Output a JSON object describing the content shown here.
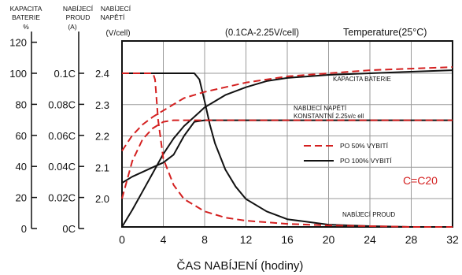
{
  "chart_data": {
    "type": "line",
    "title": "(0.1CA-2.25V/cell)",
    "subtitle": "Temperature(25°C)",
    "xlabel": "ČAS NABÍJENÍ (hodiny)",
    "x_ticks": [
      "0",
      "4",
      "8",
      "12",
      "16",
      "20",
      "24",
      "28",
      "32"
    ],
    "xlim": [
      0,
      32
    ],
    "axes": {
      "capacity": {
        "label_lines": [
          "KAPACITA",
          "BATERIE",
          "%"
        ],
        "ticks": [
          "0",
          "20",
          "40",
          "60",
          "80",
          "100",
          "120"
        ],
        "range": [
          0,
          120
        ]
      },
      "current": {
        "label_lines": [
          "NABÍJECÍ",
          "PROUD",
          "(A)"
        ],
        "ticks": [
          "0C",
          "0.02C",
          "0.04C",
          "0.06C",
          "0.08C",
          "0.1C"
        ],
        "range": [
          0,
          0.1
        ]
      },
      "voltage": {
        "label_lines": [
          "NABÍJECÍ",
          "NAPĚTÍ",
          "(V/cell)"
        ],
        "ticks": [
          "2.0",
          "2.1",
          "2.2",
          "2.3",
          "2.4"
        ],
        "range": [
          2.0,
          2.4
        ]
      }
    },
    "grid": true,
    "legend": {
      "placement": "right-middle",
      "items": [
        {
          "label": "PO 50% VYBITÍ",
          "style": "dashed",
          "color": "#d42020"
        },
        {
          "label": "PO 100% VYBITÍ",
          "style": "solid",
          "color": "#111111"
        }
      ]
    },
    "annotations": {
      "capacity_label": "KAPACITA BATERIE",
      "voltage_label_1": "NABÍJECÍ NAPĚTÍ",
      "voltage_label_2": "KONSTANTNÍ 2.25v/c ell",
      "current_label": "NABÍJECÍ PROUD",
      "c_label": "C=C20"
    },
    "series": [
      {
        "name": "PO 100% VYBITÍ",
        "quantity": "voltage",
        "color": "#111111",
        "style": "solid",
        "x": [
          0,
          1,
          2,
          3,
          4,
          5,
          6,
          7,
          8,
          10,
          12,
          16,
          20,
          24,
          28,
          32
        ],
        "y": [
          2.05,
          2.07,
          2.085,
          2.1,
          2.115,
          2.14,
          2.2,
          2.245,
          2.25,
          2.25,
          2.25,
          2.25,
          2.25,
          2.25,
          2.25,
          2.25
        ]
      },
      {
        "name": "PO 100% VYBITÍ",
        "quantity": "capacity",
        "color": "#111111",
        "style": "solid",
        "x": [
          0,
          1,
          2,
          3,
          4,
          5,
          6,
          7,
          8,
          9,
          10,
          12,
          14,
          16,
          20,
          24,
          28,
          32
        ],
        "y": [
          0,
          12,
          24,
          36,
          48,
          58,
          66,
          72,
          78,
          82,
          86,
          91,
          95,
          97,
          99,
          100,
          101,
          102
        ]
      },
      {
        "name": "PO 100% VYBITÍ",
        "quantity": "current",
        "color": "#111111",
        "style": "solid",
        "x": [
          0,
          2,
          4,
          6,
          7,
          7.5,
          8,
          8.5,
          9,
          10,
          11,
          12,
          14,
          16,
          20,
          24,
          28,
          32
        ],
        "y": [
          0.1,
          0.1,
          0.1,
          0.1,
          0.1,
          0.096,
          0.082,
          0.067,
          0.055,
          0.038,
          0.027,
          0.019,
          0.011,
          0.006,
          0.0025,
          0.0015,
          0.001,
          0.001
        ]
      },
      {
        "name": "PO 50% VYBITÍ",
        "quantity": "voltage",
        "color": "#d42020",
        "style": "dashed",
        "x": [
          0,
          1,
          2,
          3,
          4,
          5,
          6,
          8,
          10,
          12,
          16,
          20,
          24,
          28,
          32
        ],
        "y": [
          2.0,
          2.12,
          2.19,
          2.225,
          2.245,
          2.25,
          2.25,
          2.25,
          2.25,
          2.25,
          2.25,
          2.25,
          2.25,
          2.25,
          2.25
        ]
      },
      {
        "name": "PO 50% VYBITÍ",
        "quantity": "capacity",
        "color": "#d42020",
        "style": "dashed",
        "x": [
          0,
          1,
          2,
          3,
          4,
          5,
          6,
          8,
          10,
          12,
          16,
          20,
          24,
          28,
          32
        ],
        "y": [
          50,
          60,
          67,
          72,
          76,
          80,
          84,
          88,
          91,
          94,
          98,
          100,
          102,
          103,
          104
        ]
      },
      {
        "name": "PO 50% VYBITÍ",
        "quantity": "current",
        "color": "#d42020",
        "style": "dashed",
        "x": [
          0,
          2,
          3,
          3.2,
          3.5,
          4,
          5,
          6,
          8,
          10,
          12,
          16,
          20,
          24,
          28,
          32
        ],
        "y": [
          0.1,
          0.1,
          0.1,
          0.096,
          0.07,
          0.045,
          0.028,
          0.019,
          0.011,
          0.007,
          0.005,
          0.003,
          0.002,
          0.0015,
          0.001,
          0.001
        ]
      }
    ]
  }
}
